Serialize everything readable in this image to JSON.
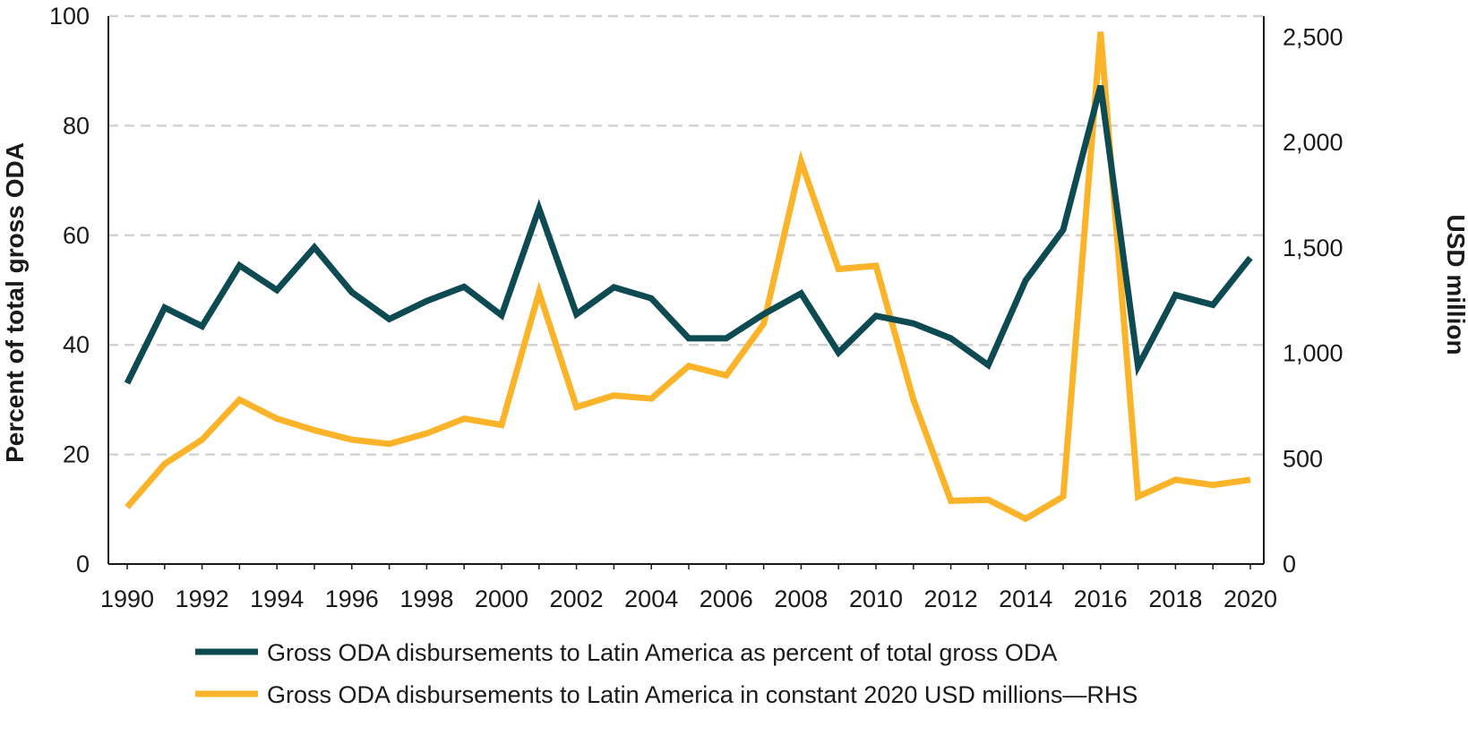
{
  "chart_data": {
    "type": "line",
    "title": "",
    "xlabel": "",
    "ylabel_left": "Percent of total gross ODA",
    "ylabel_right": "USD million",
    "x": [
      1990,
      1991,
      1992,
      1993,
      1994,
      1995,
      1996,
      1997,
      1998,
      1999,
      2000,
      2001,
      2002,
      2003,
      2004,
      2005,
      2006,
      2007,
      2008,
      2009,
      2010,
      2011,
      2012,
      2013,
      2014,
      2015,
      2016,
      2017,
      2018,
      2019,
      2020
    ],
    "x_tick_labels": [
      "1990",
      "1992",
      "1994",
      "1996",
      "1998",
      "2000",
      "2002",
      "2004",
      "2006",
      "2008",
      "2010",
      "2012",
      "2014",
      "2016",
      "2018",
      "2020"
    ],
    "ylim_left": [
      0,
      100
    ],
    "y_left_tick_labels": [
      "0",
      "20",
      "40",
      "60",
      "80",
      "100"
    ],
    "ylim_right": [
      0,
      2600
    ],
    "y_right_tick_labels": [
      "0",
      "500",
      "1,000",
      "1,500",
      "2,000",
      "2,500"
    ],
    "grid": "horizontal dashed",
    "legend_position": "bottom",
    "series": [
      {
        "name": "Gross ODA disbursements to Latin America as percent of total gross ODA",
        "axis": "left",
        "color": "#0e4a52",
        "values": [
          33,
          46.8,
          43.4,
          54.5,
          50,
          57.8,
          49.6,
          44.7,
          48,
          50.6,
          45.4,
          64.9,
          45.6,
          50.5,
          48.5,
          41.2,
          41.2,
          45.6,
          49.4,
          38.6,
          45.3,
          43.9,
          41.2,
          36.3,
          51.8,
          61,
          87.3,
          36.1,
          49.1,
          47.3,
          55.9
        ]
      },
      {
        "name": "Gross ODA disbursements to Latin America in constant 2020 USD millions—RHS",
        "axis": "right",
        "color": "#fbb42a",
        "values": [
          270,
          475,
          590,
          780,
          690,
          635,
          590,
          570,
          620,
          690,
          660,
          1290,
          745,
          800,
          785,
          940,
          895,
          1140,
          1910,
          1400,
          1415,
          780,
          300,
          305,
          215,
          320,
          2525,
          320,
          400,
          375,
          400
        ]
      }
    ]
  }
}
